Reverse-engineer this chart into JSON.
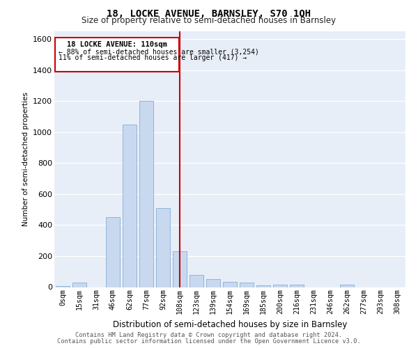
{
  "title": "18, LOCKE AVENUE, BARNSLEY, S70 1QH",
  "subtitle": "Size of property relative to semi-detached houses in Barnsley",
  "xlabel": "Distribution of semi-detached houses by size in Barnsley",
  "ylabel": "Number of semi-detached properties",
  "footnote1": "Contains HM Land Registry data © Crown copyright and database right 2024.",
  "footnote2": "Contains public sector information licensed under the Open Government Licence v3.0.",
  "bar_labels": [
    "0sqm",
    "15sqm",
    "31sqm",
    "46sqm",
    "62sqm",
    "77sqm",
    "92sqm",
    "108sqm",
    "123sqm",
    "139sqm",
    "154sqm",
    "169sqm",
    "185sqm",
    "200sqm",
    "216sqm",
    "231sqm",
    "246sqm",
    "262sqm",
    "277sqm",
    "293sqm",
    "308sqm"
  ],
  "bar_values": [
    5,
    30,
    0,
    450,
    1050,
    1200,
    510,
    230,
    80,
    50,
    35,
    30,
    10,
    15,
    15,
    0,
    0,
    15,
    0,
    0,
    0
  ],
  "bar_color": "#c8d9ef",
  "bar_edge_color": "#8fb4d9",
  "vline_x_index": 7,
  "vline_color": "#cc0000",
  "annotation_title": "18 LOCKE AVENUE: 110sqm",
  "annotation_line1": "← 88% of semi-detached houses are smaller (3,254)",
  "annotation_line2": "11% of semi-detached houses are larger (417) →",
  "annotation_box_color": "#cc0000",
  "ylim": [
    0,
    1650
  ],
  "yticks": [
    0,
    200,
    400,
    600,
    800,
    1000,
    1200,
    1400,
    1600
  ],
  "background_color": "#e8eef8",
  "grid_color": "#ffffff",
  "title_fontsize": 10,
  "subtitle_fontsize": 8.5
}
